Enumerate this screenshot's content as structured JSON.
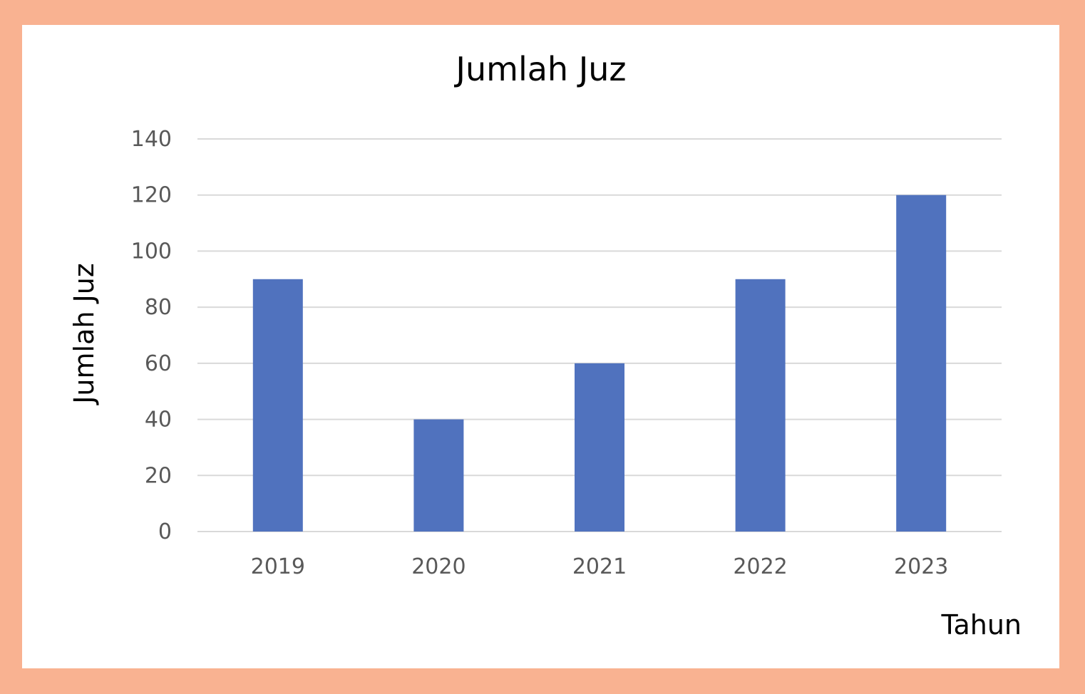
{
  "chart_data": {
    "type": "bar",
    "title": "Jumlah Juz",
    "xlabel": "Tahun",
    "ylabel": "Jumlah Juz",
    "categories": [
      "2019",
      "2020",
      "2021",
      "2022",
      "2023"
    ],
    "values": [
      90,
      40,
      60,
      90,
      120
    ],
    "ylim": [
      0,
      140
    ],
    "yticks": [
      0,
      20,
      40,
      60,
      80,
      100,
      120,
      140
    ],
    "grid": true,
    "legend": "none",
    "bar_color": "#5072be",
    "grid_color": "#d9d9d9",
    "frame_color": "#f9b291"
  }
}
